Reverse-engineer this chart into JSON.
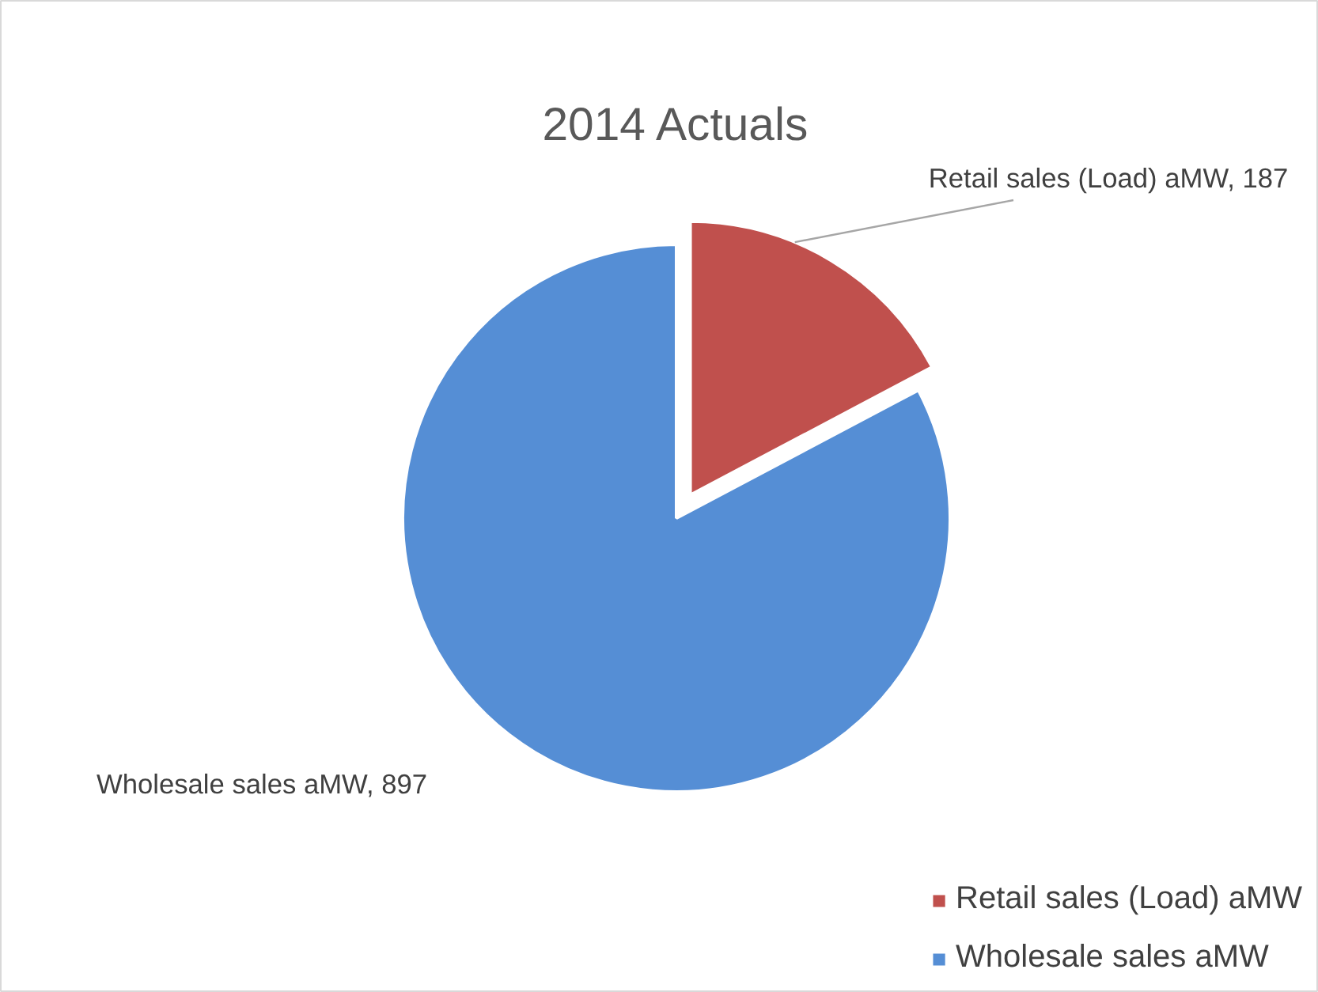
{
  "chart_data": {
    "type": "pie",
    "title": "2014 Actuals",
    "categories": [
      "Retail sales (Load) aMW",
      "Wholesale sales aMW"
    ],
    "values": [
      187,
      897
    ],
    "colors": [
      "#c0504d",
      "#558ed5"
    ],
    "value_labels": [
      "Retail sales (Load) aMW, 187",
      "Wholesale sales aMW, 897"
    ],
    "legend": "bottom right"
  }
}
